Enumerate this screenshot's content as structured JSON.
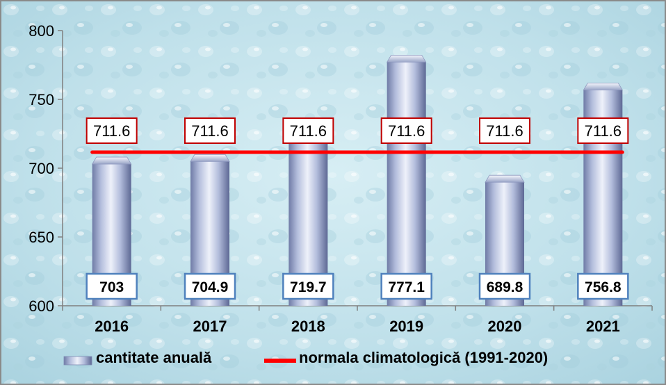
{
  "chart_data": {
    "type": "bar",
    "categories": [
      "2016",
      "2017",
      "2018",
      "2019",
      "2020",
      "2021"
    ],
    "series": [
      {
        "name": "cantitate anuală",
        "type": "bar",
        "values": [
          703,
          704.9,
          719.7,
          777.1,
          689.8,
          756.8
        ],
        "labels": [
          "703",
          "704.9",
          "719.7",
          "777.1",
          "689.8",
          "756.8"
        ]
      },
      {
        "name": "normala climatologică (1991-2020)",
        "type": "line",
        "values": [
          711.6,
          711.6,
          711.6,
          711.6,
          711.6,
          711.6
        ],
        "labels": [
          "711.6",
          "711.6",
          "711.6",
          "711.6",
          "711.6",
          "711.6"
        ]
      }
    ],
    "ylim": [
      600,
      800
    ],
    "yticks": [
      600,
      650,
      700,
      750,
      800
    ],
    "ytick_labels": [
      "600",
      "650",
      "700",
      "750",
      "800"
    ],
    "grid": false,
    "legend_position": "bottom",
    "colors": {
      "bar_light": "#e6eaf7",
      "bar_mid": "#b3bddc",
      "bar_dark": "#6f7ba6",
      "line": "#ff0000",
      "bar_label_border": "#4f81bd",
      "line_label_border": "#c00000",
      "background": "#bfe0ea",
      "frame": "#8a8a8a"
    }
  }
}
